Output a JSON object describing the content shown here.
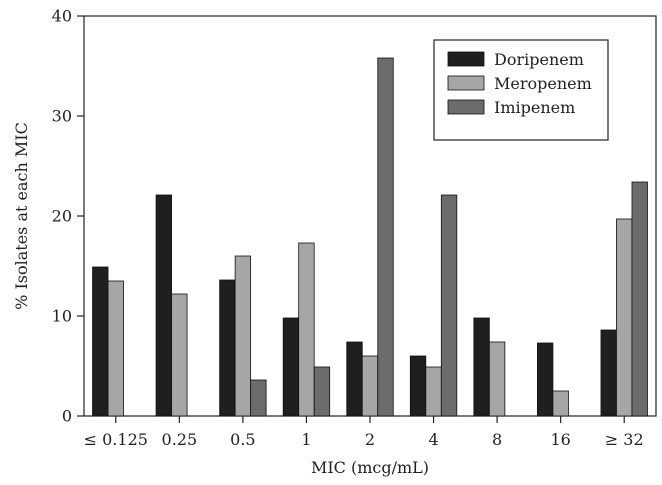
{
  "chart_data": {
    "type": "bar",
    "xlabel": "MIC (mcg/mL)",
    "ylabel": "% Isolates at each MIC",
    "ylim": [
      0,
      40
    ],
    "yticks": [
      0,
      10,
      20,
      30,
      40
    ],
    "categories": [
      "≤ 0.125",
      "0.25",
      "0.5",
      "1",
      "2",
      "4",
      "8",
      "16",
      "≥ 32"
    ],
    "series": [
      {
        "name": "Doripenem",
        "color": "#1f1f1f",
        "values": [
          14.9,
          22.1,
          13.6,
          9.8,
          7.4,
          6.0,
          9.8,
          7.3,
          8.6
        ]
      },
      {
        "name": "Meropenem",
        "color": "#a6a6a6",
        "values": [
          13.5,
          12.2,
          16.0,
          17.3,
          6.0,
          4.9,
          7.4,
          2.5,
          19.7
        ]
      },
      {
        "name": "Imipenem",
        "color": "#6c6c6c",
        "values": [
          null,
          null,
          3.6,
          4.9,
          35.8,
          22.1,
          null,
          null,
          23.4
        ]
      }
    ],
    "legend_position": "top-right",
    "grid": false
  }
}
